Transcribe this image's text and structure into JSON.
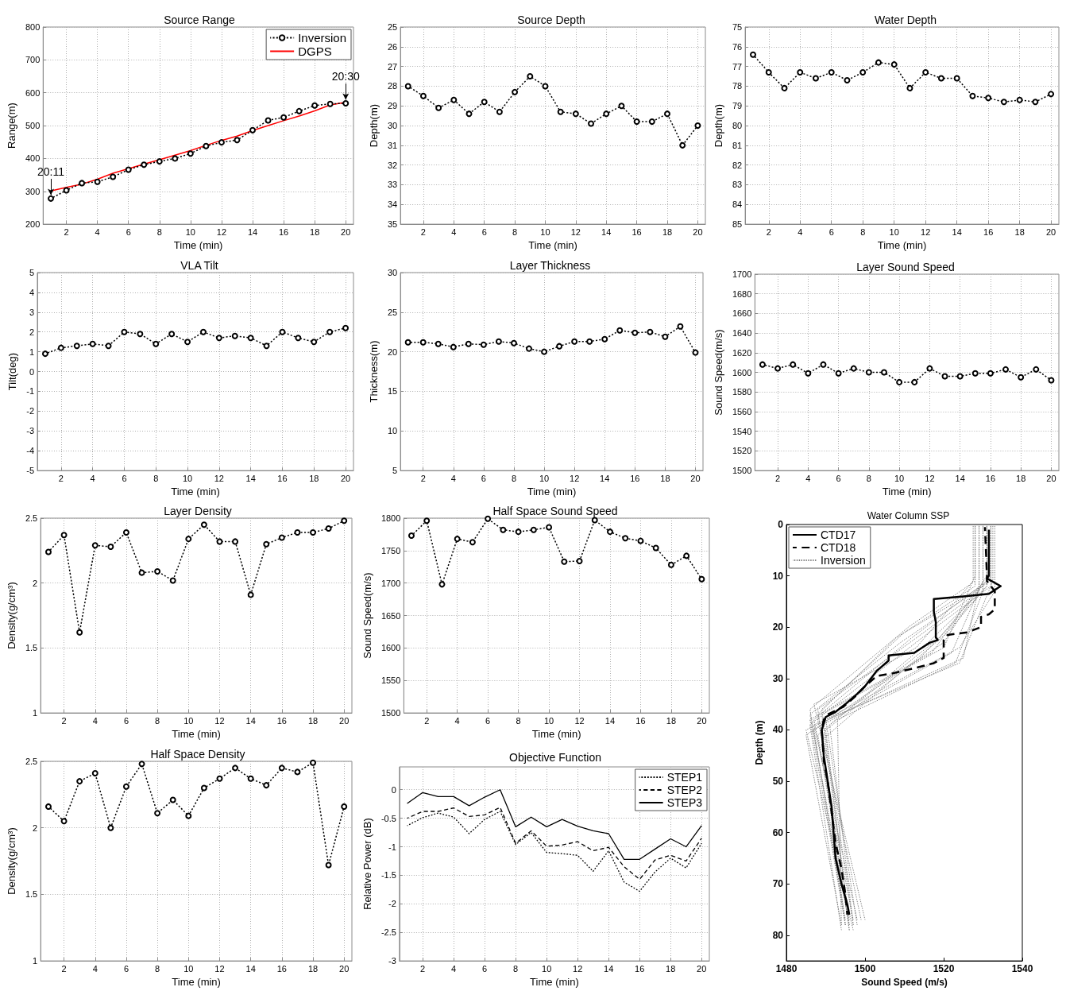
{
  "chart_data": [
    {
      "type": "line",
      "title": "Source Range",
      "xlabel": "Time (min)",
      "ylabel": "Range(m)",
      "x": [
        1,
        2,
        3,
        4,
        5,
        6,
        7,
        8,
        9,
        10,
        11,
        12,
        13,
        14,
        15,
        16,
        17,
        18,
        19,
        20
      ],
      "series": [
        {
          "name": "Inversion",
          "color": "#000000",
          "values": [
            278,
            303,
            325,
            329,
            344,
            366,
            381,
            391,
            400,
            415,
            438,
            449,
            456,
            486,
            516,
            525,
            544,
            561,
            566,
            568
          ]
        },
        {
          "name": "DGPS",
          "color": "#ff0000",
          "marker": "none",
          "line_style": "solid",
          "values": [
            301,
            312,
            322,
            337,
            355,
            369,
            383,
            396,
            410,
            424,
            440,
            455,
            468,
            485,
            500,
            515,
            529,
            545,
            563,
            571
          ]
        }
      ],
      "xlim": [
        0.5,
        20.5
      ],
      "xticks": [
        2,
        4,
        6,
        8,
        10,
        12,
        14,
        16,
        18,
        20
      ],
      "ylim": [
        200,
        800
      ],
      "yticks": [
        200,
        300,
        400,
        500,
        600,
        700,
        800
      ],
      "grid": true,
      "legend": "top right",
      "marker": "circle",
      "line_style": "dotted",
      "annotations": [
        {
          "text": "20:11",
          "x": 1,
          "y": 278
        },
        {
          "text": "20:30",
          "x": 20,
          "y": 568
        }
      ]
    },
    {
      "type": "line",
      "title": "Source Depth",
      "xlabel": "Time (min)",
      "ylabel": "Depth(m)",
      "x": [
        1,
        2,
        3,
        4,
        5,
        6,
        7,
        8,
        9,
        10,
        11,
        12,
        13,
        14,
        15,
        16,
        17,
        18,
        19,
        20
      ],
      "values": [
        28.0,
        28.5,
        29.1,
        28.7,
        29.4,
        28.8,
        29.3,
        28.3,
        27.5,
        28.0,
        29.3,
        29.4,
        29.9,
        29.4,
        29.0,
        29.8,
        29.8,
        29.4,
        31.0,
        30.0
      ],
      "color": "#000000",
      "xlim": [
        0.5,
        20.5
      ],
      "xticks": [
        2,
        4,
        6,
        8,
        10,
        12,
        14,
        16,
        18,
        20
      ],
      "ylim": [
        35,
        25
      ],
      "yticks": [
        25,
        26,
        27,
        28,
        29,
        30,
        31,
        32,
        33,
        34,
        35
      ],
      "grid": true,
      "marker": "circle",
      "line_style": "dotted"
    },
    {
      "type": "line",
      "title": "Water Depth",
      "xlabel": "Time (min)",
      "ylabel": "Depth(m)",
      "x": [
        1,
        2,
        3,
        4,
        5,
        6,
        7,
        8,
        9,
        10,
        11,
        12,
        13,
        14,
        15,
        16,
        17,
        18,
        19,
        20
      ],
      "values": [
        76.4,
        77.3,
        78.1,
        77.3,
        77.6,
        77.3,
        77.7,
        77.3,
        76.8,
        76.9,
        78.1,
        77.3,
        77.6,
        77.6,
        78.5,
        78.6,
        78.8,
        78.7,
        78.8,
        78.4
      ],
      "color": "#000000",
      "xlim": [
        0.5,
        20.5
      ],
      "xticks": [
        2,
        4,
        6,
        8,
        10,
        12,
        14,
        16,
        18,
        20
      ],
      "ylim": [
        85,
        75
      ],
      "yticks": [
        75,
        76,
        77,
        78,
        79,
        80,
        81,
        82,
        83,
        84,
        85
      ],
      "grid": true,
      "marker": "circle",
      "line_style": "dotted"
    },
    {
      "type": "line",
      "title": "VLA Tilt",
      "xlabel": "Time (min)",
      "ylabel": "Tilt(deg)",
      "x": [
        1,
        2,
        3,
        4,
        5,
        6,
        7,
        8,
        9,
        10,
        11,
        12,
        13,
        14,
        15,
        16,
        17,
        18,
        19,
        20
      ],
      "values": [
        0.9,
        1.2,
        1.3,
        1.4,
        1.3,
        2.0,
        1.9,
        1.4,
        1.9,
        1.5,
        2.0,
        1.7,
        1.8,
        1.7,
        1.3,
        2.0,
        1.7,
        1.5,
        2.0,
        2.2
      ],
      "color": "#000000",
      "xlim": [
        0.5,
        20.5
      ],
      "xticks": [
        2,
        4,
        6,
        8,
        10,
        12,
        14,
        16,
        18,
        20
      ],
      "ylim": [
        -5,
        5
      ],
      "yticks": [
        -5,
        -4,
        -3,
        -2,
        -1,
        0,
        1,
        2,
        3,
        4,
        5
      ],
      "grid": true,
      "marker": "circle",
      "line_style": "dotted"
    },
    {
      "type": "line",
      "title": "Layer Thickness",
      "xlabel": "Time (min)",
      "ylabel": "Thickness(m)",
      "x": [
        1,
        2,
        3,
        4,
        5,
        6,
        7,
        8,
        9,
        10,
        11,
        12,
        13,
        14,
        15,
        16,
        17,
        18,
        19,
        20
      ],
      "values": [
        21.2,
        21.2,
        21.0,
        20.6,
        21.0,
        20.9,
        21.3,
        21.1,
        20.4,
        20.0,
        20.7,
        21.3,
        21.3,
        21.6,
        22.7,
        22.4,
        22.5,
        21.9,
        23.2,
        19.9
      ],
      "color": "#000000",
      "xlim": [
        0.5,
        20.5
      ],
      "xticks": [
        2,
        4,
        6,
        8,
        10,
        12,
        14,
        16,
        18,
        20
      ],
      "ylim": [
        5,
        30
      ],
      "yticks": [
        5,
        10,
        15,
        20,
        25,
        30
      ],
      "grid": true,
      "marker": "circle",
      "line_style": "dotted"
    },
    {
      "type": "line",
      "title": "Layer Sound Speed",
      "xlabel": "Time (min)",
      "ylabel": "Sound Speed(m/s)",
      "x": [
        1,
        2,
        3,
        4,
        5,
        6,
        7,
        8,
        9,
        10,
        11,
        12,
        13,
        14,
        15,
        16,
        17,
        18,
        19,
        20
      ],
      "values": [
        1608,
        1604,
        1608,
        1599,
        1608,
        1599,
        1604,
        1600,
        1600,
        1590,
        1590,
        1604,
        1596,
        1596,
        1599,
        1599,
        1603,
        1595,
        1603,
        1592
      ],
      "color": "#000000",
      "xlim": [
        0.5,
        20.5
      ],
      "xticks": [
        2,
        4,
        6,
        8,
        10,
        12,
        14,
        16,
        18,
        20
      ],
      "ylim": [
        1500,
        1700
      ],
      "yticks": [
        1500,
        1520,
        1540,
        1560,
        1580,
        1600,
        1620,
        1640,
        1660,
        1680,
        1700
      ],
      "grid": true,
      "marker": "circle",
      "line_style": "dotted"
    },
    {
      "type": "line",
      "title": "Layer Density",
      "xlabel": "Time (min)",
      "ylabel": "Density(g/cm³)",
      "x": [
        1,
        2,
        3,
        4,
        5,
        6,
        7,
        8,
        9,
        10,
        11,
        12,
        13,
        14,
        15,
        16,
        17,
        18,
        19,
        20
      ],
      "values": [
        2.24,
        2.37,
        1.62,
        2.29,
        2.28,
        2.39,
        2.08,
        2.09,
        2.02,
        2.34,
        2.45,
        2.32,
        2.32,
        1.91,
        2.3,
        2.35,
        2.39,
        2.39,
        2.42,
        2.48
      ],
      "color": "#000000",
      "xlim": [
        0.5,
        20.5
      ],
      "xticks": [
        2,
        4,
        6,
        8,
        10,
        12,
        14,
        16,
        18,
        20
      ],
      "ylim": [
        1,
        2.5
      ],
      "yticks": [
        1,
        1.5,
        2,
        2.5
      ],
      "grid": true,
      "marker": "circle",
      "line_style": "dotted"
    },
    {
      "type": "line",
      "title": "Half Space Sound Speed",
      "xlabel": "Time (min)",
      "ylabel": "Sound Speed(m/s)",
      "x": [
        1,
        2,
        3,
        4,
        5,
        6,
        7,
        8,
        9,
        10,
        11,
        12,
        13,
        14,
        15,
        16,
        17,
        18,
        19,
        20
      ],
      "values": [
        1773,
        1796,
        1698,
        1768,
        1763,
        1799,
        1782,
        1779,
        1782,
        1786,
        1733,
        1734,
        1797,
        1779,
        1769,
        1765,
        1754,
        1728,
        1742,
        1706
      ],
      "color": "#000000",
      "xlim": [
        0.5,
        20.5
      ],
      "xticks": [
        2,
        4,
        6,
        8,
        10,
        12,
        14,
        16,
        18,
        20
      ],
      "ylim": [
        1500,
        1800
      ],
      "yticks": [
        1500,
        1550,
        1600,
        1650,
        1700,
        1750,
        1800
      ],
      "grid": true,
      "marker": "circle",
      "line_style": "dotted"
    },
    {
      "type": "line",
      "title": "Water Column SSP",
      "xlabel": "Sound Speed (m/s)",
      "ylabel": "Depth (m)",
      "series": [
        {
          "name": "CTD17",
          "color": "#000000",
          "line_style": "solid",
          "x": [
            1531.5,
            1531.5,
            1531,
            1534.5,
            1531.5,
            1525,
            1517.5,
            1517.5,
            1518,
            1518,
            1518.5,
            1516.5,
            1514.5,
            1512.5,
            1506,
            1506,
            1503,
            1501.5,
            1500,
            1498,
            1495,
            1492.5,
            1490,
            1489,
            1489.5,
            1490.5,
            1491.5,
            1492,
            1492.5,
            1494,
            1495.5,
            1496
          ],
          "values": [
            1,
            10,
            10.5,
            12,
            13.5,
            14,
            14.5,
            17,
            19,
            22,
            22.5,
            23,
            24,
            25,
            25.5,
            26.5,
            28.5,
            30,
            31.5,
            33,
            35,
            36.5,
            37.5,
            40,
            45,
            50,
            55,
            60,
            65,
            70,
            74,
            76
          ]
        },
        {
          "name": "CTD18",
          "color": "#000000",
          "line_style": "dashed",
          "x": [
            1530.5,
            1531,
            1531,
            1533,
            1533,
            1533,
            1531.5,
            1529.5,
            1529.5,
            1529.5,
            1526,
            1521,
            1520,
            1520,
            1517.5,
            1512.5,
            1507,
            1503,
            1500,
            1497.5,
            1494.5,
            1490.5,
            1489.5,
            1489,
            1489.5,
            1490.5,
            1491.5,
            1492.5,
            1494,
            1495,
            1495.5
          ],
          "values": [
            0.5,
            10,
            11,
            13,
            15,
            16.5,
            17.5,
            18,
            19.5,
            20,
            21,
            21.5,
            22.5,
            26,
            27,
            28,
            29,
            29.5,
            31.5,
            33.5,
            35.5,
            37,
            38,
            40,
            46,
            50,
            56,
            62,
            67,
            72,
            76
          ]
        },
        {
          "name": "Inversion",
          "color": "#808080",
          "line_style": "dotted",
          "x": [
            1530,
            1530,
            1509,
            1486,
            1496
          ],
          "values": [
            0,
            12,
            23,
            37,
            78
          ]
        },
        {
          "color": "#808080",
          "line_style": "dotted",
          "x": [
            1531,
            1531,
            1512,
            1487,
            1497
          ],
          "values": [
            0,
            11,
            22,
            38,
            77
          ]
        },
        {
          "color": "#808080",
          "line_style": "dotted",
          "x": [
            1529,
            1529,
            1515,
            1488,
            1495
          ],
          "values": [
            0,
            13,
            21,
            36,
            78
          ]
        },
        {
          "color": "#808080",
          "line_style": "dotted",
          "x": [
            1532,
            1532,
            1518,
            1486,
            1494
          ],
          "values": [
            0,
            12,
            20,
            39,
            79
          ]
        },
        {
          "color": "#808080",
          "line_style": "dotted",
          "x": [
            1528,
            1528,
            1520,
            1489,
            1496
          ],
          "values": [
            0,
            10,
            24,
            37,
            77
          ]
        },
        {
          "color": "#808080",
          "line_style": "dotted",
          "x": [
            1530,
            1530,
            1522,
            1487,
            1495
          ],
          "values": [
            0,
            11,
            25,
            40,
            78
          ]
        },
        {
          "color": "#808080",
          "line_style": "dotted",
          "x": [
            1533,
            1533,
            1524,
            1490,
            1498
          ],
          "values": [
            0,
            13,
            24,
            38,
            78
          ]
        },
        {
          "color": "#808080",
          "line_style": "dotted",
          "x": [
            1529,
            1529,
            1525,
            1485,
            1497
          ],
          "values": [
            0,
            12,
            26,
            40,
            79
          ]
        },
        {
          "color": "#808080",
          "line_style": "dotted",
          "x": [
            1531,
            1531,
            1516,
            1488,
            1496
          ],
          "values": [
            0,
            12,
            23,
            41,
            78
          ]
        },
        {
          "color": "#808080",
          "line_style": "dotted",
          "x": [
            1528,
            1528,
            1511,
            1486,
            1495
          ],
          "values": [
            0,
            11,
            20,
            36,
            77
          ]
        },
        {
          "color": "#808080",
          "line_style": "dotted",
          "x": [
            1532,
            1532,
            1519,
            1491,
            1497
          ],
          "values": [
            0,
            10,
            22,
            39,
            78
          ]
        },
        {
          "color": "#808080",
          "line_style": "dotted",
          "x": [
            1530,
            1530,
            1523,
            1493,
            1494
          ],
          "values": [
            0,
            13,
            27,
            38,
            78
          ]
        },
        {
          "color": "#808080",
          "line_style": "dotted",
          "x": [
            1527.5,
            1527.5,
            1513,
            1487,
            1500
          ],
          "values": [
            0,
            11,
            24,
            35,
            77
          ]
        },
        {
          "color": "#808080",
          "line_style": "dotted",
          "x": [
            1531,
            1531,
            1521,
            1489,
            1496
          ],
          "values": [
            0,
            12,
            21,
            42,
            79
          ]
        },
        {
          "color": "#808080",
          "line_style": "dotted",
          "x": [
            1529,
            1529,
            1517,
            1486,
            1495
          ],
          "values": [
            0,
            12,
            25,
            38,
            78
          ]
        },
        {
          "color": "#808080",
          "line_style": "dotted",
          "x": [
            1532,
            1532,
            1508,
            1488,
            1499
          ],
          "values": [
            0,
            11,
            22,
            37,
            77
          ]
        },
        {
          "color": "#808080",
          "line_style": "dotted",
          "x": [
            1530,
            1530,
            1514,
            1490,
            1496
          ],
          "values": [
            0,
            13,
            26,
            40,
            79
          ]
        },
        {
          "color": "#808080",
          "line_style": "dotted",
          "x": [
            1531,
            1531,
            1520,
            1485,
            1494
          ],
          "values": [
            0,
            10,
            23,
            41,
            78
          ]
        },
        {
          "color": "#808080",
          "line_style": "dotted",
          "x": [
            1528,
            1528,
            1510,
            1489,
            1497
          ],
          "values": [
            0,
            12,
            21,
            36,
            78
          ]
        },
        {
          "color": "#808080",
          "line_style": "dotted",
          "x": [
            1532.5,
            1532.5,
            1524,
            1487,
            1498
          ],
          "values": [
            0,
            11,
            27,
            39,
            77
          ]
        }
      ],
      "xlim": [
        1480,
        1540
      ],
      "xticks": [
        1480,
        1500,
        1520,
        1540
      ],
      "ylim": [
        85,
        0
      ],
      "yticks": [
        0,
        10,
        20,
        30,
        40,
        50,
        60,
        70,
        80
      ],
      "legend": "top left",
      "marker": "none"
    },
    {
      "type": "line",
      "title": "Half Space Density",
      "xlabel": "Time (min)",
      "ylabel": "Density(g/cm³)",
      "x": [
        1,
        2,
        3,
        4,
        5,
        6,
        7,
        8,
        9,
        10,
        11,
        12,
        13,
        14,
        15,
        16,
        17,
        18,
        19,
        20
      ],
      "values": [
        2.16,
        2.05,
        2.35,
        2.41,
        2.0,
        2.31,
        2.48,
        2.11,
        2.21,
        2.09,
        2.3,
        2.37,
        2.45,
        2.37,
        2.32,
        2.45,
        2.42,
        2.49,
        1.72,
        2.16
      ],
      "color": "#000000",
      "xlim": [
        0.5,
        20.5
      ],
      "xticks": [
        2,
        4,
        6,
        8,
        10,
        12,
        14,
        16,
        18,
        20
      ],
      "ylim": [
        1,
        2.5
      ],
      "yticks": [
        1,
        1.5,
        2,
        2.5
      ],
      "grid": true,
      "marker": "circle",
      "line_style": "dotted"
    },
    {
      "type": "line",
      "title": "Objective Function",
      "xlabel": "Time (min)",
      "ylabel": "Relative Power (dB)",
      "x": [
        1,
        2,
        3,
        4,
        5,
        6,
        7,
        8,
        9,
        10,
        11,
        12,
        13,
        14,
        15,
        16,
        17,
        18,
        19,
        20
      ],
      "series": [
        {
          "name": "STEP1",
          "color": "#000000",
          "line_style": "dotted",
          "values": [
            -0.63,
            -0.49,
            -0.41,
            -0.48,
            -0.77,
            -0.52,
            -0.38,
            -0.96,
            -0.75,
            -1.1,
            -1.12,
            -1.15,
            -1.43,
            -1.07,
            -1.62,
            -1.78,
            -1.44,
            -1.2,
            -1.37,
            -0.94
          ]
        },
        {
          "name": "STEP2",
          "color": "#000000",
          "line_style": "dashed",
          "values": [
            -0.5,
            -0.38,
            -0.38,
            -0.32,
            -0.47,
            -0.44,
            -0.31,
            -0.94,
            -0.72,
            -0.99,
            -0.97,
            -0.91,
            -1.07,
            -1.01,
            -1.35,
            -1.57,
            -1.23,
            -1.15,
            -1.25,
            -0.85
          ]
        },
        {
          "name": "STEP3",
          "color": "#000000",
          "line_style": "solid",
          "values": [
            -0.24,
            -0.05,
            -0.12,
            -0.12,
            -0.28,
            -0.13,
            0,
            -0.65,
            -0.48,
            -0.65,
            -0.52,
            -0.64,
            -0.72,
            -0.77,
            -1.22,
            -1.22,
            -1.04,
            -0.86,
            -1.0,
            -0.63
          ]
        }
      ],
      "xlim": [
        0.5,
        20.5
      ],
      "xticks": [
        2,
        4,
        6,
        8,
        10,
        12,
        14,
        16,
        18,
        20
      ],
      "ylim": [
        -3,
        0.4
      ],
      "yticks": [
        -3,
        -2.5,
        -2,
        -1.5,
        -1,
        -0.5,
        0
      ],
      "grid": true,
      "legend": "top right",
      "marker": "none"
    }
  ]
}
